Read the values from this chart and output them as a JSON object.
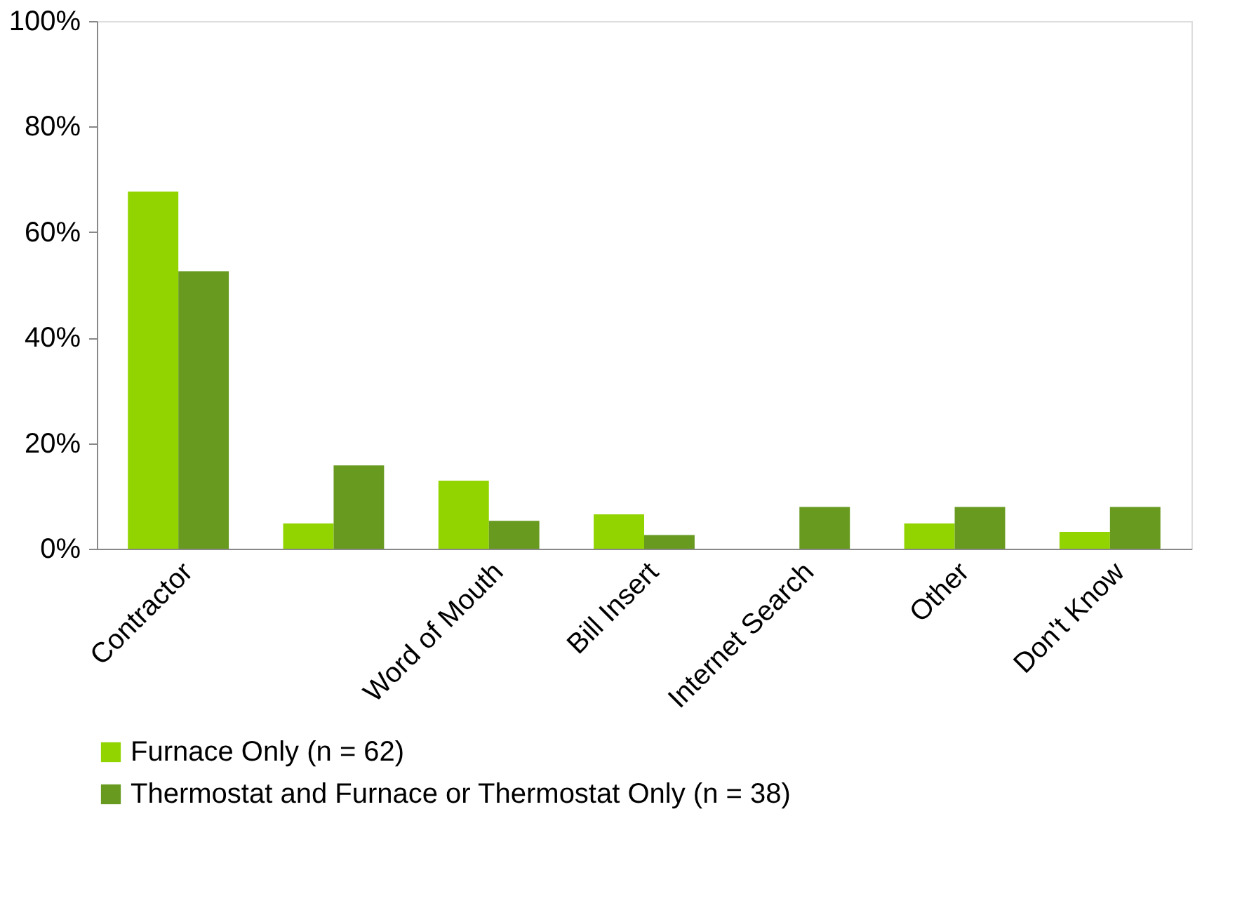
{
  "chart_data": {
    "type": "bar",
    "categories": [
      "Contractor",
      null,
      "Word of Mouth",
      "Bill Insert",
      "Internet Search",
      "Other",
      "Don't Know"
    ],
    "series": [
      {
        "name": "Furnace Only (n = 62)",
        "color": "#92d400",
        "values": [
          67.7,
          4.8,
          12.9,
          6.5,
          0,
          4.8,
          3.2
        ]
      },
      {
        "name": "Thermostat and Furnace or Thermostat Only (n = 38)",
        "color": "#679a1e",
        "values": [
          52.6,
          15.8,
          5.3,
          2.6,
          7.9,
          7.9,
          7.9
        ]
      }
    ],
    "ylim": [
      0,
      100
    ],
    "yticks": [
      {
        "value": 0,
        "label": "0%"
      },
      {
        "value": 20,
        "label": "20%"
      },
      {
        "value": 40,
        "label": "40%"
      },
      {
        "value": 60,
        "label": "60%"
      },
      {
        "value": 80,
        "label": "80%"
      },
      {
        "value": 100,
        "label": "100%"
      }
    ],
    "grid": false,
    "legend": "bottom"
  }
}
